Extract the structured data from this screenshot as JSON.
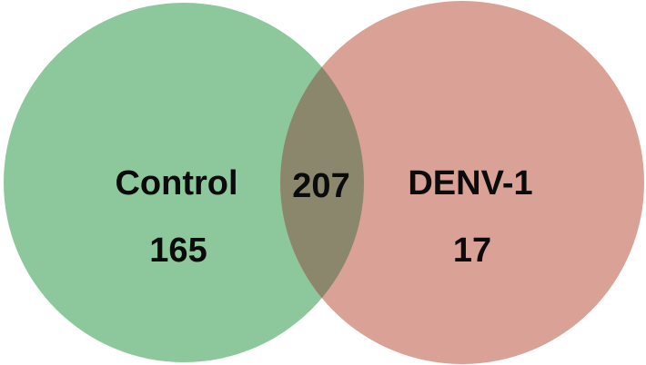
{
  "sets": [
    {
      "name": "Control",
      "unique_count": "165",
      "color": "#8dc89c"
    },
    {
      "name": "DENV-1",
      "unique_count": "17",
      "color": "#daa196"
    }
  ],
  "intersection": {
    "count": "207",
    "color": "#8a876c"
  },
  "chart_data": {
    "type": "venn",
    "sets": [
      "Control",
      "DENV-1"
    ],
    "regions": [
      {
        "sets": [
          "Control"
        ],
        "value": 165
      },
      {
        "sets": [
          "Control",
          "DENV-1"
        ],
        "value": 207
      },
      {
        "sets": [
          "DENV-1"
        ],
        "value": 17
      }
    ]
  }
}
